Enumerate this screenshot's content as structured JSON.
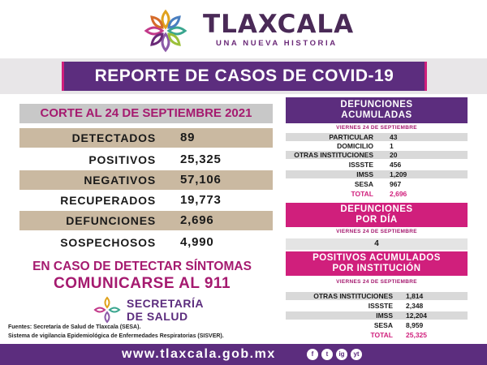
{
  "header": {
    "brand": "TLAXCALA",
    "slogan": "UNA NUEVA HISTORIA",
    "logo_icon": "tlaxcala-flower-logo-icon"
  },
  "title": "REPORTE DE CASOS DE COVID-19",
  "corte": "CORTE AL 24 DE SEPTIEMBRE 2021",
  "stats": [
    {
      "label": "DETECTADOS",
      "value": "89"
    },
    {
      "label": "POSITIVOS",
      "value": "25,325"
    },
    {
      "label": "NEGATIVOS",
      "value": "57,106"
    },
    {
      "label": "RECUPERADOS",
      "value": "19,773"
    },
    {
      "label": "DEFUNCIONES",
      "value": "2,696"
    },
    {
      "label": "SOSPECHOSOS",
      "value": "4,990"
    }
  ],
  "cta": {
    "line1": "EN CASO DE DETECTAR SÍNTOMAS",
    "line2": "COMUNICARSE AL 911"
  },
  "secretaria": {
    "line1": "SECRETARÍA",
    "line2": "DE SALUD"
  },
  "sources": [
    "Fuentes:  Secretaría de Salud de Tlaxcala (SESA).",
    "Sistema de vigilancia Epidemiológica de Enfermedades Respiratorias (SISVER)."
  ],
  "footer": {
    "url": "www.tlaxcala.gob.mx",
    "social": [
      "f",
      "t",
      "ig",
      "yt"
    ]
  },
  "defunciones_acumuladas": {
    "title_line1": "DEFUNCIONES",
    "title_line2": "ACUMULADAS",
    "date": "VIERNES 24 DE SEPTIEMBRE",
    "rows": [
      {
        "label": "PARTICULAR",
        "value": "43"
      },
      {
        "label": "DOMICILIO",
        "value": "1"
      },
      {
        "label": "OTRAS INSTITUCIONES",
        "value": "20"
      },
      {
        "label": "ISSSTE",
        "value": "456"
      },
      {
        "label": "IMSS",
        "value": "1,209"
      },
      {
        "label": "SESA",
        "value": "967"
      }
    ],
    "total_label": "TOTAL",
    "total_value": "2,696"
  },
  "defunciones_dia": {
    "title_line1": "DEFUNCIONES",
    "title_line2": "POR DÍA",
    "date": "VIERNES 24 DE SEPTIEMBRE",
    "value": "4"
  },
  "positivos_institucion": {
    "title_line1": "POSITIVOS ACUMULADOS",
    "title_line2": "POR INSTITUCIÓN",
    "date": "VIERNES 24 DE SEPTIEMBRE",
    "rows": [
      {
        "label": "OTRAS INSTITUCIONES",
        "value": "1,814"
      },
      {
        "label": "ISSSTE",
        "value": "2,348"
      },
      {
        "label": "IMSS",
        "value": "12,204"
      },
      {
        "label": "SESA",
        "value": "8,959"
      }
    ],
    "total_label": "TOTAL",
    "total_value": "25,325"
  },
  "colors": {
    "purple": "#5c2d7e",
    "magenta": "#d01f7c",
    "tan": "#cab9a1"
  }
}
